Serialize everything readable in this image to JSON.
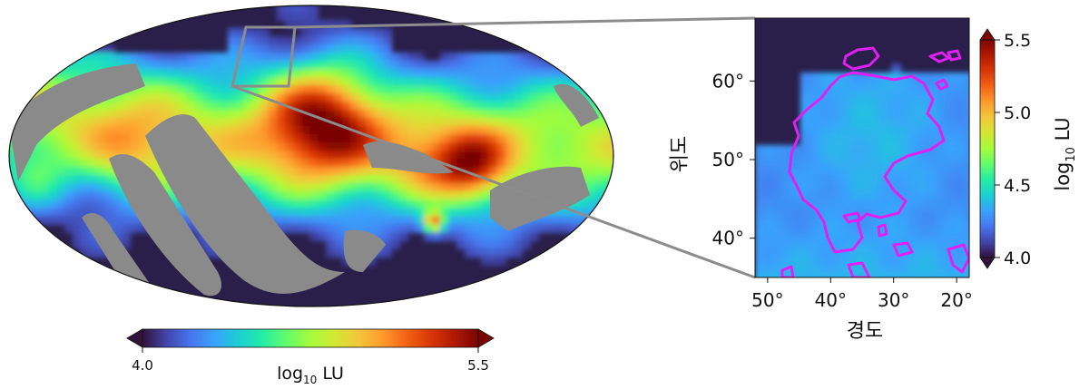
{
  "colors": {
    "mask_gray": "#8a8a8a",
    "contour": "#e020f0",
    "connector": "#8c8c8c",
    "background_dark": "#2a1f4a"
  },
  "colormap": "turbo",
  "chart_data": [
    {
      "type": "heatmap",
      "projection": "mollweide",
      "title": "",
      "colorbar": {
        "label_base": "log",
        "label_sub": "10",
        "label_unit": " LU",
        "orientation": "horizontal",
        "range": [
          4.0,
          5.5
        ],
        "ticks": [
          "4.0",
          "5.5"
        ],
        "extend": "both"
      },
      "zoom_box_lon_range": [
        52,
        18
      ],
      "zoom_box_lat_range": [
        35,
        68
      ]
    },
    {
      "type": "heatmap",
      "title": "",
      "xlabel": "경도",
      "ylabel": "위도",
      "xlim": [
        52,
        18
      ],
      "ylim": [
        35,
        68
      ],
      "x_ticks": [
        "50°",
        "40°",
        "30°",
        "20°"
      ],
      "y_ticks": [
        "40°",
        "50°",
        "60°"
      ],
      "contour_color": "magenta",
      "colorbar": {
        "label_base": "log",
        "label_sub": "10",
        "label_unit": " LU",
        "orientation": "vertical",
        "range": [
          4.0,
          5.5
        ],
        "ticks": [
          "4.0",
          "4.5",
          "5.0",
          "5.5"
        ],
        "extend": "both"
      }
    }
  ]
}
